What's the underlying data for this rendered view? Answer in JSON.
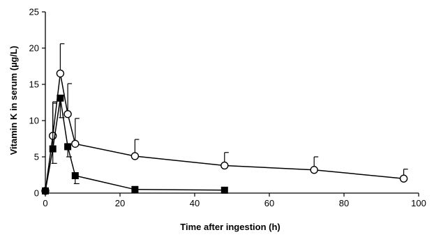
{
  "chart_data": {
    "type": "line",
    "xlabel": "Time after ingestion (h)",
    "ylabel": "Vitamin K in serum (µg/L)",
    "xlim": [
      0,
      100
    ],
    "ylim": [
      0,
      25
    ],
    "x_ticks": [
      0,
      20,
      40,
      60,
      80,
      100
    ],
    "y_ticks": [
      0,
      5,
      10,
      15,
      20,
      25
    ],
    "grid": false,
    "legend": "none",
    "series": [
      {
        "marker": "open-circle",
        "color": "#000000",
        "x": [
          0,
          2,
          4,
          6,
          8,
          24,
          48,
          72,
          96
        ],
        "y": [
          0.3,
          7.9,
          16.5,
          10.9,
          6.8,
          5.1,
          3.8,
          3.2,
          2.0
        ],
        "error_plus": [
          0,
          4.7,
          4.1,
          4.2,
          3.5,
          2.3,
          1.8,
          1.8,
          1.3
        ]
      },
      {
        "marker": "filled-square",
        "color": "#000000",
        "x": [
          0,
          2,
          4,
          6,
          8,
          24,
          48
        ],
        "y": [
          0.3,
          6.1,
          13.1,
          6.4,
          2.4,
          0.5,
          0.4
        ],
        "error_plus": [
          0,
          6.3,
          0,
          0,
          0,
          0,
          0
        ],
        "error_minus": [
          0,
          2.0,
          2.7,
          1.4,
          1.1,
          0,
          0
        ]
      }
    ]
  }
}
